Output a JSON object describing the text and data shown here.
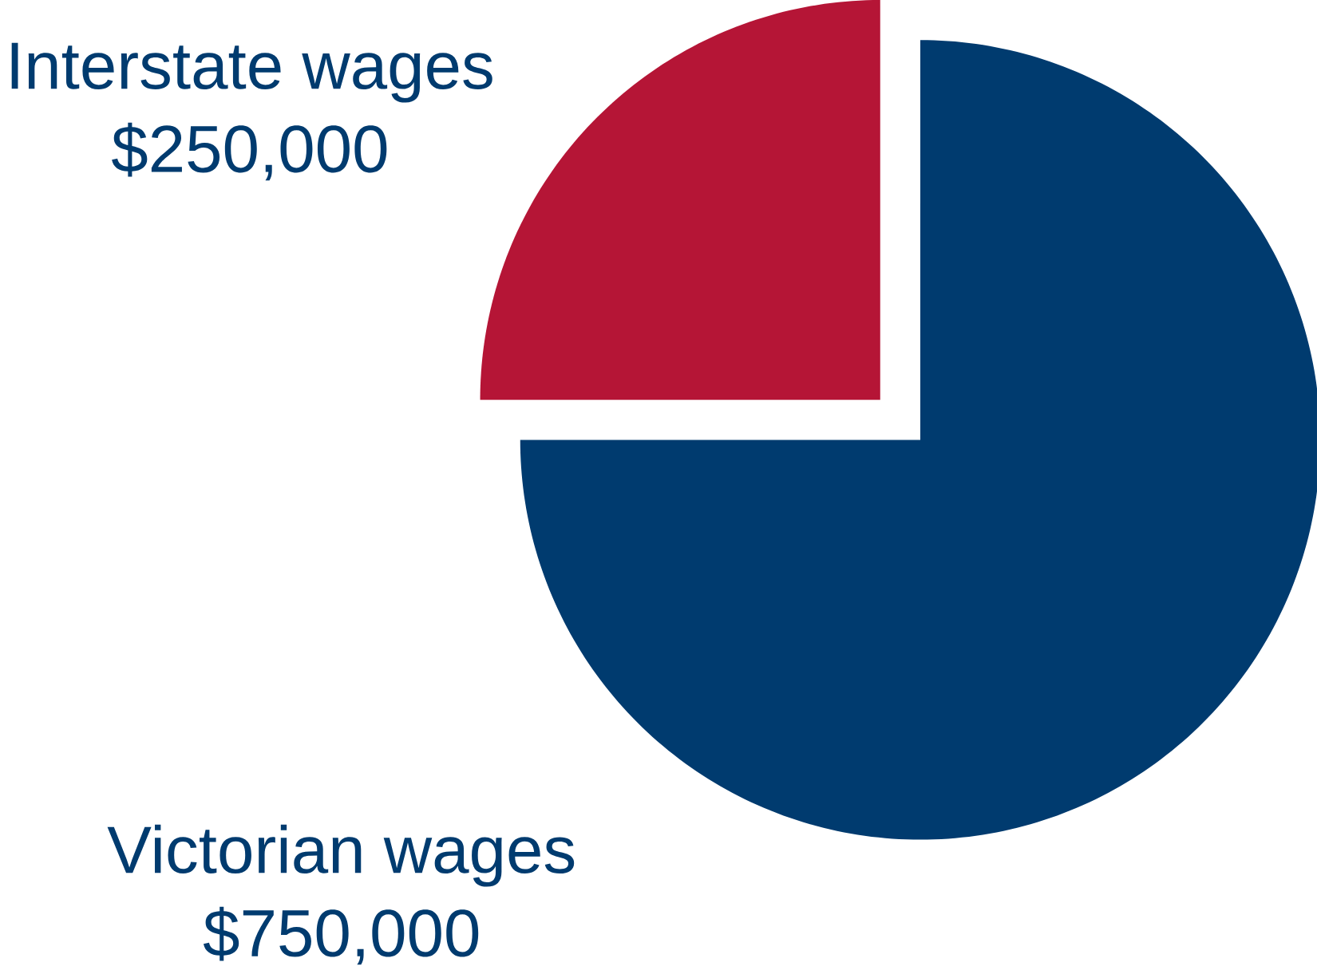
{
  "chart_data": {
    "type": "pie",
    "categories": [
      "Interstate wages",
      "Victorian wages"
    ],
    "values": [
      250000,
      750000
    ],
    "value_labels": [
      "$250,000",
      "$750,000"
    ],
    "colors": [
      "#b51536",
      "#003b6f"
    ]
  }
}
